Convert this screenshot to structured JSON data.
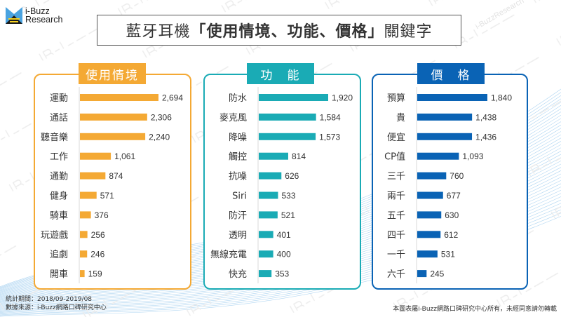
{
  "logo": {
    "line1": "i-Buzz",
    "line2": "Research"
  },
  "title": {
    "prefix": "藍牙耳機",
    "bold": "「使用情境、功能、價格」",
    "suffix": "關鍵字"
  },
  "watermark": "i-BuzzResearch",
  "footer": {
    "period": "統計期間：2018/09-2019/08",
    "source": "數據來源：i-Buzz網路口碑研究中心",
    "copyright": "本圖表屬i-Buzz網路口碑研究中心所有，未經同意請勿轉載"
  },
  "colors": {
    "usage": "#F4A934",
    "function": "#1AABB5",
    "price": "#0A63B5"
  },
  "chart_data": [
    {
      "type": "bar",
      "orientation": "horizontal",
      "title": "使用情境",
      "categories": [
        "運動",
        "通話",
        "聽音樂",
        "工作",
        "通勤",
        "健身",
        "騎車",
        "玩遊戲",
        "追劇",
        "開車"
      ],
      "values": [
        2694,
        2306,
        2240,
        1061,
        874,
        571,
        376,
        256,
        246,
        159
      ],
      "labels": [
        "2,694",
        "2,306",
        "2,240",
        "1,061",
        "874",
        "571",
        "376",
        "256",
        "246",
        "159"
      ],
      "xlabel": "",
      "ylabel": "",
      "grid": false
    },
    {
      "type": "bar",
      "orientation": "horizontal",
      "title": "功　能",
      "categories": [
        "防水",
        "麥克風",
        "降噪",
        "觸控",
        "抗噪",
        "Siri",
        "防汗",
        "透明",
        "無線充電",
        "快充"
      ],
      "values": [
        1920,
        1584,
        1573,
        814,
        626,
        533,
        521,
        401,
        400,
        353
      ],
      "labels": [
        "1,920",
        "1,584",
        "1,573",
        "814",
        "626",
        "533",
        "521",
        "401",
        "400",
        "353"
      ],
      "xlabel": "",
      "ylabel": "",
      "grid": false
    },
    {
      "type": "bar",
      "orientation": "horizontal",
      "title": "價　格",
      "categories": [
        "預算",
        "貴",
        "便宜",
        "CP值",
        "三千",
        "兩千",
        "五千",
        "四千",
        "一千",
        "六千"
      ],
      "values": [
        1840,
        1438,
        1436,
        1093,
        760,
        677,
        630,
        612,
        531,
        245
      ],
      "labels": [
        "1,840",
        "1,438",
        "1,436",
        "1,093",
        "760",
        "677",
        "630",
        "612",
        "531",
        "245"
      ],
      "xlabel": "",
      "ylabel": "",
      "grid": false
    }
  ]
}
